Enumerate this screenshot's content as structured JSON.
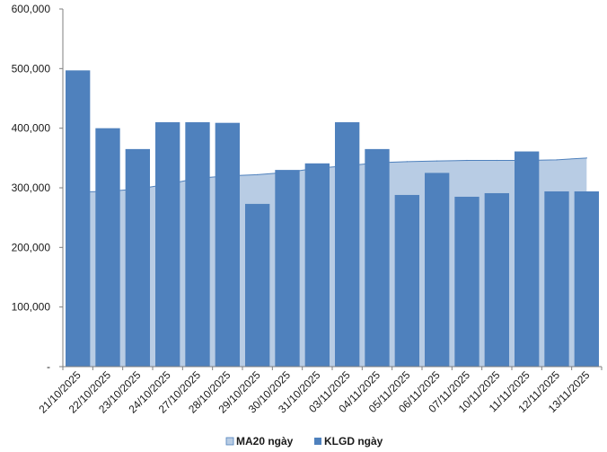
{
  "chart_data": {
    "type": "bar",
    "categories": [
      "21/10/2025",
      "22/10/2025",
      "23/10/2025",
      "24/10/2025",
      "27/10/2025",
      "28/10/2025",
      "29/10/2025",
      "30/10/2025",
      "31/10/2025",
      "03/11/2025",
      "04/11/2025",
      "05/11/2025",
      "06/11/2025",
      "07/11/2025",
      "10/11/2025",
      "11/11/2025",
      "12/11/2025",
      "13/11/2025"
    ],
    "series": [
      {
        "name": "MA20 ngày",
        "kind": "area",
        "color": "#b8cce4",
        "edge_color": "#4f81bd",
        "values": [
          293000,
          294000,
          298000,
          306000,
          316000,
          320000,
          322000,
          326000,
          333000,
          337000,
          342000,
          344000,
          345000,
          346000,
          346000,
          346000,
          347000,
          350000
        ]
      },
      {
        "name": "KLGD ngày",
        "kind": "bar",
        "color": "#4f81bd",
        "values": [
          497000,
          400000,
          365000,
          410000,
          410000,
          409000,
          273000,
          330000,
          341000,
          410000,
          365000,
          288000,
          325000,
          285000,
          291000,
          361000,
          294000,
          294000
        ]
      }
    ],
    "ylim": [
      0,
      600000
    ],
    "yticks": [
      {
        "value": 0,
        "label": "-"
      },
      {
        "value": 100000,
        "label": "100,000"
      },
      {
        "value": 200000,
        "label": "200,000"
      },
      {
        "value": 300000,
        "label": "300,000"
      },
      {
        "value": 400000,
        "label": "400,000"
      },
      {
        "value": 500000,
        "label": "500,000"
      },
      {
        "value": 600000,
        "label": "600,000"
      }
    ],
    "grid": false,
    "legend_position": "bottom"
  }
}
